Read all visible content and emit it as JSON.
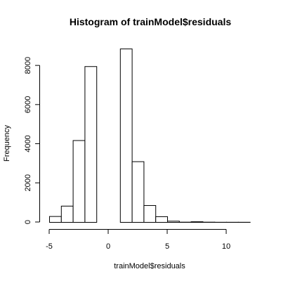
{
  "chart_data": {
    "type": "bar",
    "title": "Histogram of trainModel$residuals",
    "xlabel": "trainModel$residuals",
    "ylabel": "Frequency",
    "bin_width": 1,
    "bins": [
      {
        "start": -5,
        "end": -4,
        "count": 300
      },
      {
        "start": -4,
        "end": -3,
        "count": 830
      },
      {
        "start": -3,
        "end": -2,
        "count": 4180
      },
      {
        "start": -2,
        "end": -1,
        "count": 7960
      },
      {
        "start": -1,
        "end": 0,
        "count": 0
      },
      {
        "start": 0,
        "end": 1,
        "count": 0
      },
      {
        "start": 1,
        "end": 2,
        "count": 8860
      },
      {
        "start": 2,
        "end": 3,
        "count": 3100
      },
      {
        "start": 3,
        "end": 4,
        "count": 860
      },
      {
        "start": 4,
        "end": 5,
        "count": 290
      },
      {
        "start": 5,
        "end": 6,
        "count": 60
      },
      {
        "start": 6,
        "end": 7,
        "count": 10
      },
      {
        "start": 7,
        "end": 8,
        "count": 30
      },
      {
        "start": 8,
        "end": 9,
        "count": 10
      },
      {
        "start": 9,
        "end": 10,
        "count": 5
      },
      {
        "start": 10,
        "end": 11,
        "count": 5
      },
      {
        "start": 11,
        "end": 12,
        "count": 5
      }
    ],
    "xlim": [
      -5,
      12
    ],
    "ylim": [
      0,
      9000
    ],
    "x_ticks": [
      -5,
      0,
      5,
      10
    ],
    "y_ticks": [
      0,
      2000,
      4000,
      6000,
      8000
    ],
    "x_tick_labels": [
      "-5",
      "0",
      "5",
      "10"
    ],
    "y_tick_labels": [
      "0",
      "2000",
      "4000",
      "6000",
      "8000"
    ],
    "grid": false,
    "legend": "none"
  }
}
